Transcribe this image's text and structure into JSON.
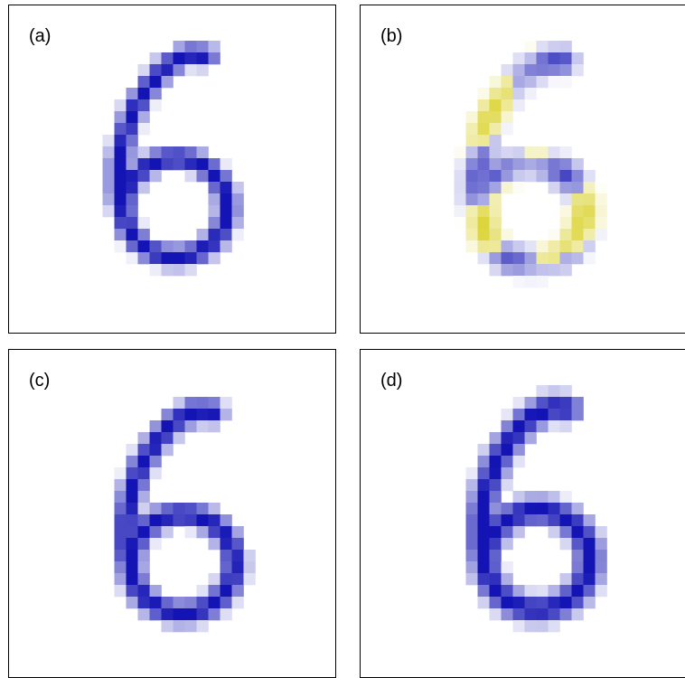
{
  "figure": {
    "panels": [
      {
        "id": "a",
        "label": "(a)",
        "shading": "blue"
      },
      {
        "id": "b",
        "label": "(b)",
        "shading": "blue-yellow"
      },
      {
        "id": "c",
        "label": "(c)",
        "shading": "blue"
      },
      {
        "id": "d",
        "label": "(d)",
        "shading": "blue"
      }
    ]
  },
  "colors": {
    "positive": "#1414b4",
    "negative": "#d2c800",
    "background": "#ffffff",
    "frame": "#000000"
  },
  "grid_rows": 28,
  "grid_cols": 28
}
